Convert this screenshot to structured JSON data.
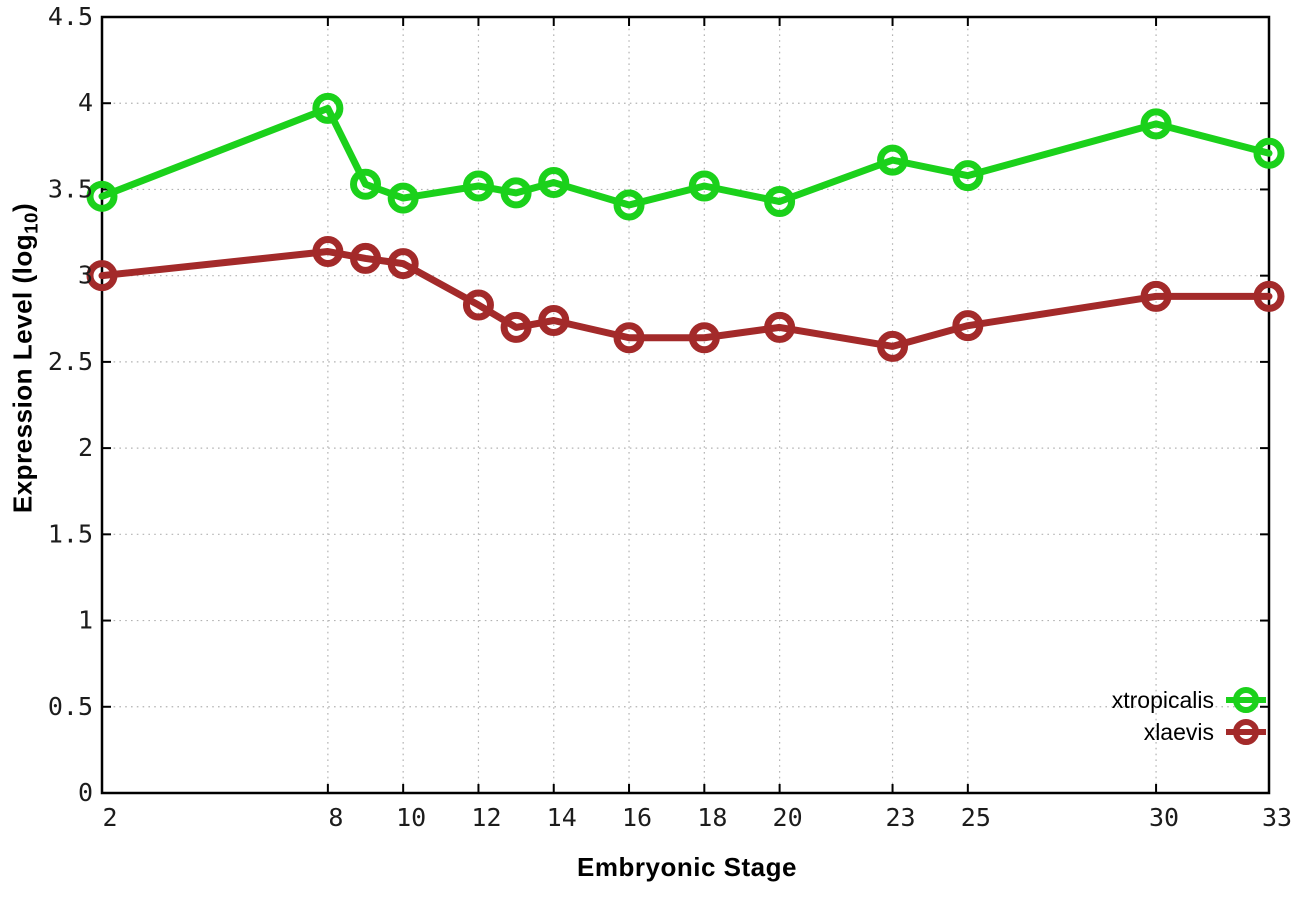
{
  "chart_data": {
    "type": "line",
    "title": "",
    "xlabel": "Embryonic Stage",
    "ylabel": "Expression Level (log10)",
    "ylabel_parts": {
      "pre": "Expression Level (log",
      "sub": "10",
      "post": ")"
    },
    "xlim": [
      2,
      33
    ],
    "ylim": [
      0,
      4.5
    ],
    "grid": true,
    "legend_position": "bottom-right",
    "marker": "open-circle",
    "x": [
      2,
      8,
      9,
      10,
      12,
      13,
      14,
      16,
      18,
      20,
      23,
      25,
      30,
      33
    ],
    "xtick_values": [
      2,
      8,
      10,
      12,
      14,
      16,
      18,
      20,
      23,
      25,
      30,
      33
    ],
    "xtick_labels": [
      "2",
      "8",
      "10",
      "12",
      "14",
      "16",
      "18",
      "20",
      "23",
      "25",
      "30",
      "33"
    ],
    "ytick_values": [
      0,
      0.5,
      1,
      1.5,
      2,
      2.5,
      3,
      3.5,
      4,
      4.5
    ],
    "ytick_labels": [
      "0",
      "0.5",
      "1",
      "1.5",
      "2",
      "2.5",
      "3",
      "3.5",
      "4",
      "4.5"
    ],
    "series": [
      {
        "name": "xtropicalis",
        "color": "#1bd11b",
        "values": [
          3.46,
          3.97,
          3.53,
          3.45,
          3.52,
          3.48,
          3.54,
          3.41,
          3.52,
          3.43,
          3.67,
          3.58,
          3.88,
          3.71
        ]
      },
      {
        "name": "xlaevis",
        "color": "#a32a2a",
        "values": [
          3.0,
          3.14,
          3.1,
          3.07,
          2.83,
          2.7,
          2.74,
          2.64,
          2.64,
          2.7,
          2.59,
          2.71,
          2.88,
          2.88
        ]
      }
    ]
  },
  "colors": {
    "background": "#ffffff",
    "grid": "#b3b3b3",
    "axis": "#000000",
    "tick_text": "#1c1c1c"
  }
}
